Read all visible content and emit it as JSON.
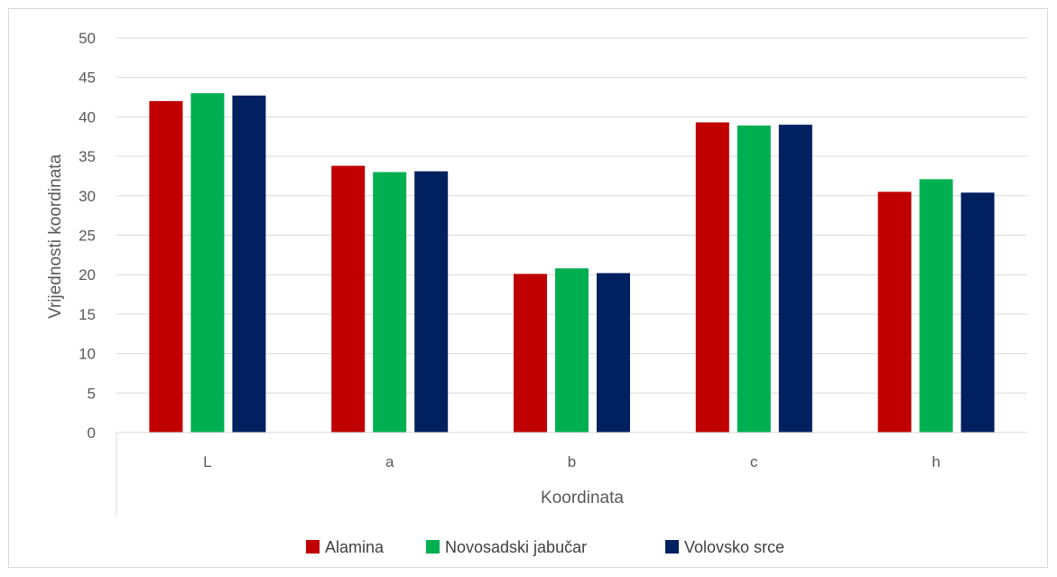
{
  "chart_data": {
    "type": "bar",
    "title": "",
    "xlabel": "Koordinata",
    "ylabel": "Vrijednosti koordinata",
    "categories": [
      "L",
      "a",
      "b",
      "c",
      "h"
    ],
    "series": [
      {
        "name": "Alamina",
        "color": "#C00000",
        "values": [
          42.0,
          33.8,
          20.1,
          39.3,
          30.5
        ]
      },
      {
        "name": "Novosadski jabučar",
        "color": "#00B050",
        "values": [
          43.0,
          33.0,
          20.8,
          38.9,
          32.1
        ]
      },
      {
        "name": "Volovsko srce",
        "color": "#002060",
        "values": [
          42.7,
          33.1,
          20.2,
          39.0,
          30.4
        ]
      }
    ],
    "ylim": [
      0,
      50
    ],
    "yticks": [
      0,
      5,
      10,
      15,
      20,
      25,
      30,
      35,
      40,
      45,
      50
    ],
    "grid": true,
    "legend_position": "bottom"
  }
}
